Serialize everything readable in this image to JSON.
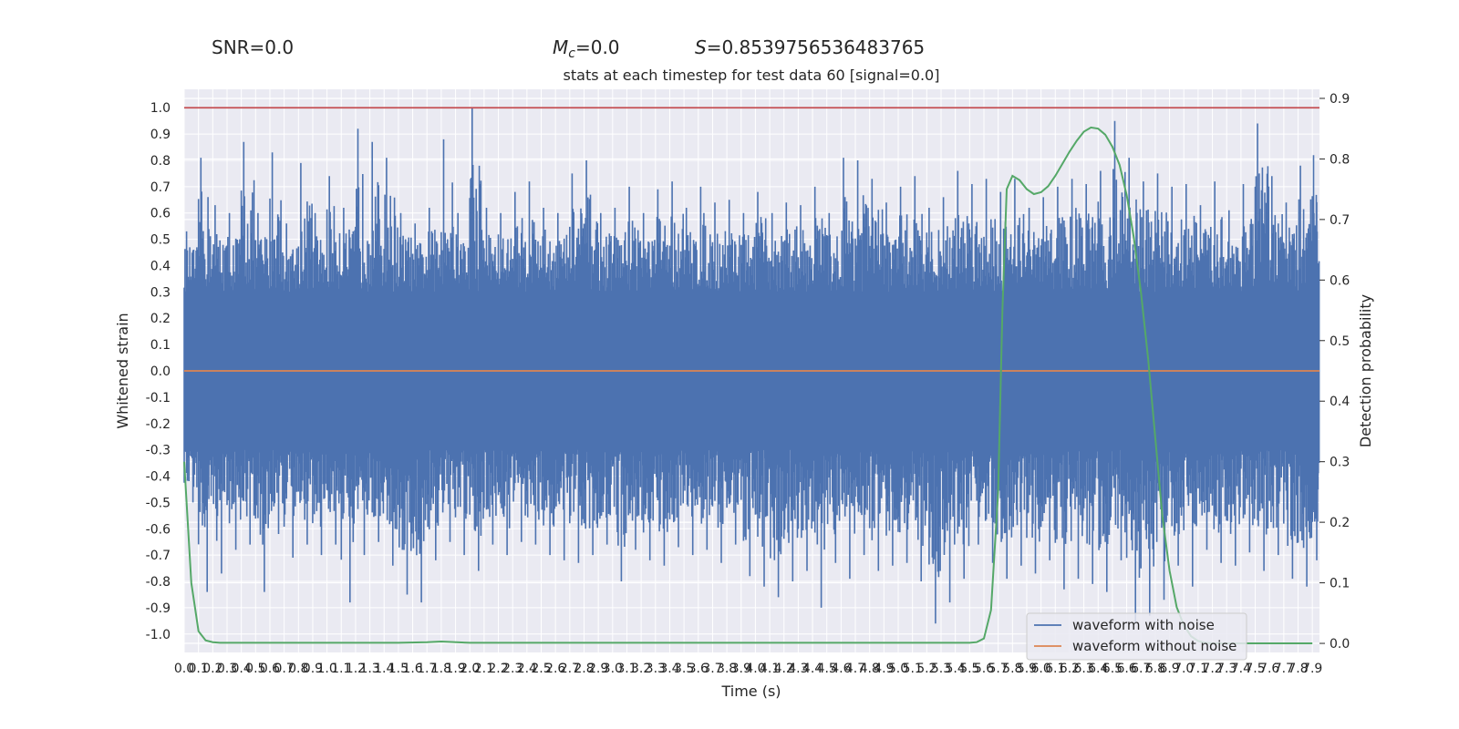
{
  "stats": {
    "snr_text": "SNR=0.0",
    "mc_symbol": "M",
    "mc_sub": "c",
    "mc_value": "=0.0",
    "s_symbol": "S",
    "s_value": "=0.8539756536483765"
  },
  "colors": {
    "background": "#eaeaf2",
    "grid": "#ffffff",
    "noisy": "#4c72b0",
    "clean": "#dd8452",
    "prob": "#55a868",
    "threshold": "#c44e52"
  },
  "chart_data": {
    "type": "line",
    "title": "stats at each timestep for test data 60 [signal=0.0]",
    "xlabel": "Time (s)",
    "ylabel": "Whitened strain",
    "y2label": "Detection probability",
    "xlim": [
      0,
      7.95
    ],
    "ylim": [
      -1.07,
      1.07
    ],
    "y2lim": [
      -0.015,
      0.915
    ],
    "x_tick_labels": [
      "0.0",
      "0.1",
      "0.2",
      "0.3",
      "0.4",
      "0.5",
      "0.6",
      "0.7",
      "0.8",
      "0.9",
      "1.0",
      "1.1",
      "1.2",
      "1.3",
      "1.4",
      "1.5",
      "1.6",
      "1.7",
      "1.8",
      "1.9",
      "2.0",
      "2.1",
      "2.2",
      "2.3",
      "2.4",
      "2.5",
      "2.6",
      "2.7",
      "2.8",
      "2.9",
      "3.0",
      "3.1",
      "3.2",
      "3.3",
      "3.4",
      "3.5",
      "3.6",
      "3.7",
      "3.8",
      "3.9",
      "4.0",
      "4.1",
      "4.2",
      "4.3",
      "4.4",
      "4.5",
      "4.6",
      "4.7",
      "4.8",
      "4.9",
      "5.0",
      "5.1",
      "5.2",
      "5.3",
      "5.4",
      "5.5",
      "5.6",
      "5.7",
      "5.8",
      "5.9",
      "6.0",
      "6.1",
      "6.2",
      "6.3",
      "6.4",
      "6.5",
      "6.6",
      "6.7",
      "6.8",
      "6.9",
      "7.0",
      "7.1",
      "7.2",
      "7.3",
      "7.4",
      "7.5",
      "7.6",
      "7.7",
      "7.8",
      "7.9"
    ],
    "y_tick_labels": [
      "-1.0",
      "-0.9",
      "-0.8",
      "-0.7",
      "-0.6",
      "-0.5",
      "-0.4",
      "-0.3",
      "-0.2",
      "-0.1",
      "0.0",
      "0.1",
      "0.2",
      "0.3",
      "0.4",
      "0.5",
      "0.6",
      "0.7",
      "0.8",
      "0.9",
      "1.0"
    ],
    "y2_tick_labels": [
      "0.0",
      "0.1",
      "0.2",
      "0.3",
      "0.4",
      "0.5",
      "0.6",
      "0.7",
      "0.8",
      "0.9"
    ],
    "threshold": 1.0,
    "legend": {
      "location": "lower right",
      "entries": [
        "waveform with noise",
        "waveform without noise"
      ]
    },
    "series": [
      {
        "name": "waveform with noise",
        "axis": "left",
        "description_envelope": true,
        "x": [
          0.0,
          0.1,
          0.2,
          0.3,
          0.4,
          0.5,
          0.6,
          0.7,
          0.8,
          0.9,
          1.0,
          1.1,
          1.2,
          1.3,
          1.4,
          1.5,
          1.6,
          1.7,
          1.8,
          1.9,
          2.0,
          2.1,
          2.2,
          2.3,
          2.4,
          2.5,
          2.6,
          2.7,
          2.8,
          2.9,
          3.0,
          3.1,
          3.2,
          3.3,
          3.4,
          3.5,
          3.6,
          3.7,
          3.8,
          3.9,
          4.0,
          4.1,
          4.2,
          4.3,
          4.4,
          4.5,
          4.6,
          4.7,
          4.8,
          4.9,
          5.0,
          5.1,
          5.2,
          5.3,
          5.4,
          5.5,
          5.6,
          5.7,
          5.8,
          5.9,
          6.0,
          6.1,
          6.2,
          6.3,
          6.4,
          6.5,
          6.6,
          6.7,
          6.8,
          6.9,
          7.0,
          7.1,
          7.2,
          7.3,
          7.4,
          7.5,
          7.6,
          7.7,
          7.8,
          7.9
        ],
        "upper": [
          0.53,
          0.81,
          0.63,
          0.6,
          0.87,
          0.6,
          0.83,
          0.56,
          0.79,
          0.6,
          0.74,
          0.62,
          0.92,
          0.87,
          0.81,
          0.6,
          0.56,
          0.62,
          0.88,
          0.6,
          1.0,
          0.62,
          0.6,
          0.68,
          0.72,
          0.62,
          0.6,
          0.75,
          0.8,
          0.6,
          0.62,
          0.7,
          0.6,
          0.69,
          0.72,
          0.62,
          0.7,
          0.64,
          0.65,
          0.6,
          0.68,
          0.6,
          0.64,
          0.63,
          0.7,
          0.6,
          0.81,
          0.8,
          0.73,
          0.64,
          0.7,
          0.74,
          0.62,
          0.66,
          0.76,
          0.71,
          0.73,
          0.68,
          0.73,
          0.62,
          0.66,
          0.7,
          0.73,
          0.71,
          0.76,
          0.95,
          0.81,
          0.72,
          0.75,
          0.7,
          0.71,
          0.63,
          0.72,
          0.61,
          0.71,
          0.94,
          0.74,
          0.64,
          0.78,
          0.82
        ],
        "lower": [
          -0.5,
          -0.84,
          -0.77,
          -0.68,
          -0.66,
          -0.84,
          -0.62,
          -0.71,
          -0.66,
          -0.7,
          -0.66,
          -0.88,
          -0.7,
          -0.65,
          -0.74,
          -0.85,
          -0.88,
          -0.72,
          -0.65,
          -0.7,
          -0.76,
          -0.66,
          -0.7,
          -0.65,
          -0.66,
          -0.7,
          -0.72,
          -0.73,
          -0.7,
          -0.66,
          -0.8,
          -0.68,
          -0.72,
          -0.74,
          -0.67,
          -0.7,
          -0.68,
          -0.73,
          -0.66,
          -0.78,
          -0.82,
          -0.86,
          -0.8,
          -0.76,
          -0.9,
          -0.73,
          -0.79,
          -0.7,
          -0.76,
          -0.74,
          -0.73,
          -0.8,
          -0.96,
          -0.88,
          -0.79,
          -0.66,
          -0.73,
          -0.79,
          -0.74,
          -0.77,
          -0.72,
          -0.83,
          -0.79,
          -0.81,
          -0.84,
          -0.72,
          -0.96,
          -0.93,
          -0.87,
          -0.74,
          -0.82,
          -0.68,
          -0.73,
          -0.74,
          -0.69,
          -0.76,
          -0.7,
          -0.79,
          -0.82,
          -0.72
        ]
      },
      {
        "name": "waveform without noise",
        "axis": "left",
        "x": [
          0.0,
          7.95
        ],
        "y": [
          0.0,
          0.0
        ]
      },
      {
        "axis": "right",
        "x": [
          0.0,
          0.05,
          0.1,
          0.15,
          0.2,
          0.25,
          0.3,
          0.4,
          0.6,
          1.0,
          1.5,
          1.7,
          1.8,
          2.0,
          2.5,
          3.0,
          3.5,
          4.0,
          4.5,
          5.0,
          5.5,
          5.55,
          5.6,
          5.65,
          5.7,
          5.73,
          5.76,
          5.8,
          5.85,
          5.9,
          5.95,
          6.0,
          6.05,
          6.1,
          6.15,
          6.2,
          6.25,
          6.3,
          6.35,
          6.4,
          6.45,
          6.5,
          6.55,
          6.6,
          6.65,
          6.7,
          6.75,
          6.8,
          6.85,
          6.9,
          6.95,
          7.0,
          7.05,
          7.1,
          7.15,
          7.2,
          7.25,
          7.3,
          7.35,
          7.4,
          7.5,
          7.6,
          7.7,
          7.8,
          7.9
        ],
        "y": [
          0.3,
          0.1,
          0.02,
          0.005,
          0.002,
          0.001,
          0.001,
          0.001,
          0.001,
          0.001,
          0.001,
          0.002,
          0.003,
          0.001,
          0.001,
          0.001,
          0.001,
          0.001,
          0.001,
          0.001,
          0.001,
          0.002,
          0.008,
          0.055,
          0.25,
          0.55,
          0.75,
          0.772,
          0.765,
          0.75,
          0.742,
          0.745,
          0.755,
          0.772,
          0.792,
          0.812,
          0.83,
          0.845,
          0.852,
          0.85,
          0.84,
          0.82,
          0.79,
          0.74,
          0.67,
          0.58,
          0.47,
          0.34,
          0.21,
          0.12,
          0.06,
          0.03,
          0.012,
          0.004,
          0.001,
          0.0,
          0.0,
          0.0,
          0.0,
          0.0,
          0.0,
          0.0,
          0.0,
          0.0,
          0.0
        ]
      }
    ]
  }
}
